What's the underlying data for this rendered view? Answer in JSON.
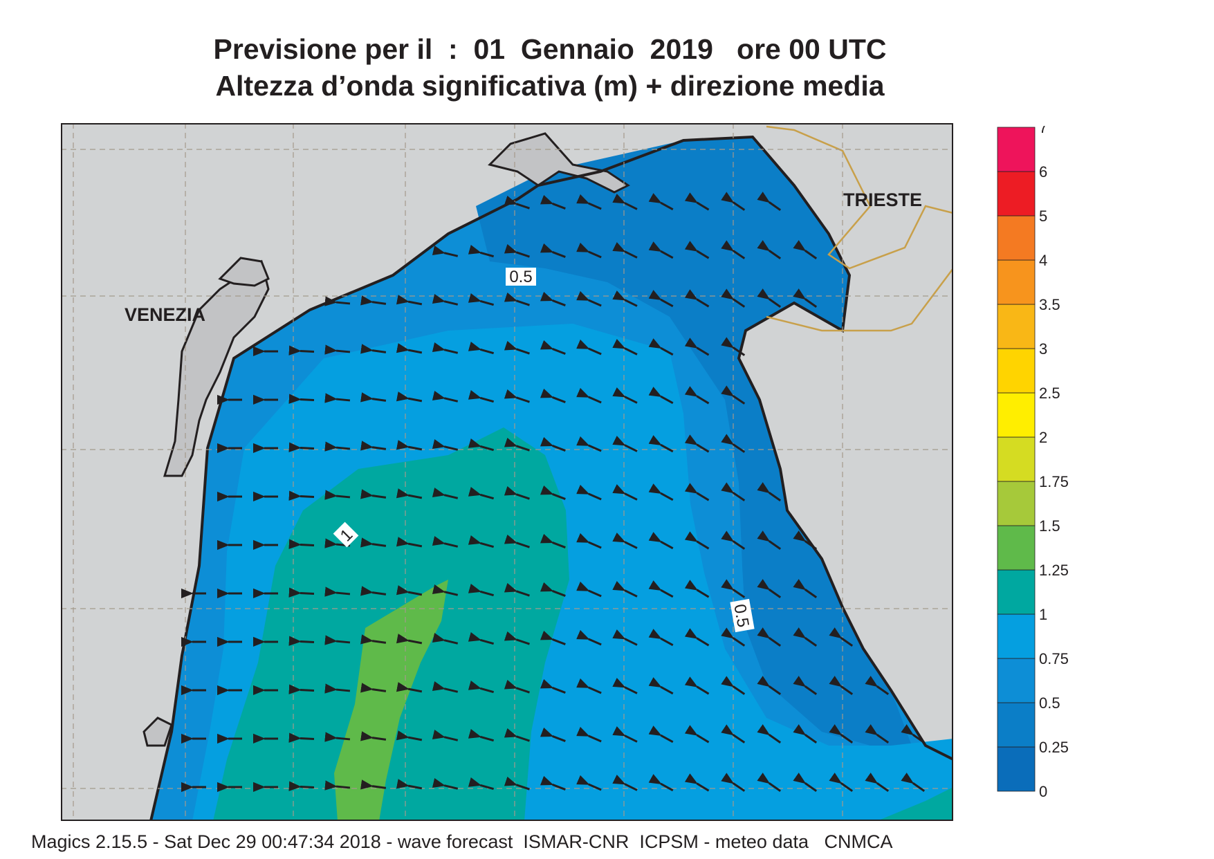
{
  "title_line1": "Previsione per il  :  01  Gennaio  2019   ore 00 UTC",
  "title_line2": "Altezza d’onda significativa (m) + direzione media",
  "cities": [
    {
      "name": "VENEZIA"
    },
    {
      "name": "TRIESTE"
    }
  ],
  "contour_labels": [
    "0.5",
    "1",
    "0.5"
  ],
  "legend": {
    "levels": [
      "0",
      "0.25",
      "0.5",
      "0.75",
      "1",
      "1.25",
      "1.5",
      "1.75",
      "2",
      "2.5",
      "3",
      "3.5",
      "4",
      "5",
      "6",
      "7"
    ],
    "colors": [
      "#0a6dba",
      "#0b7ec7",
      "#0d8ed6",
      "#059fe0",
      "#00a8a0",
      "#5fba4a",
      "#a6c93a",
      "#d5dc22",
      "#ffee00",
      "#ffd400",
      "#f9b716",
      "#f7941d",
      "#f47a22",
      "#ed1c24",
      "#ee145b"
    ]
  },
  "colors": {
    "land": "#d1d3d4",
    "lagoon": "#c2c3c5",
    "coast": "#231f20",
    "grid": "#a49a8c",
    "border": "#c8a04a"
  },
  "wave_direction": "toward west/southwest",
  "credit": "Magics 2.15.5 - Sat Dec 29 00:47:34 2018 - wave forecast  ISMAR-CNR  ICPSM - meteo data   CNMCA"
}
